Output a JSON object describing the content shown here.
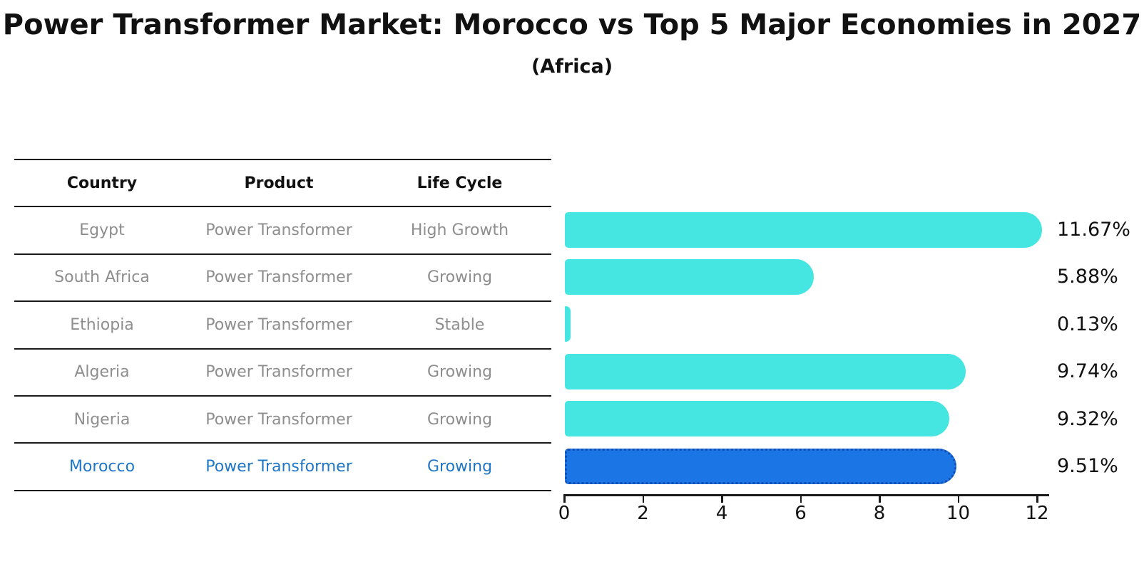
{
  "title": "Power Transformer Market: Morocco vs Top 5 Major Economies in 2027",
  "subtitle": "(Africa)",
  "table": {
    "headers": [
      "Country",
      "Product",
      "Life Cycle"
    ],
    "rows": [
      {
        "country": "Egypt",
        "product": "Power Transformer",
        "life_cycle": "High Growth",
        "highlight": false
      },
      {
        "country": "South Africa",
        "product": "Power Transformer",
        "life_cycle": "Growing",
        "highlight": false
      },
      {
        "country": "Ethiopia",
        "product": "Power Transformer",
        "life_cycle": "Stable",
        "highlight": false
      },
      {
        "country": "Algeria",
        "product": "Power Transformer",
        "life_cycle": "Growing",
        "highlight": false
      },
      {
        "country": "Nigeria",
        "product": "Power Transformer",
        "life_cycle": "Growing",
        "highlight": false
      },
      {
        "country": "Morocco",
        "product": "Power Transformer",
        "life_cycle": "Growing",
        "highlight": true
      }
    ]
  },
  "chart_data": {
    "type": "bar",
    "orientation": "horizontal",
    "title": "Power Transformer Market: Morocco vs Top 5 Major Economies in 2027 (Africa)",
    "categories": [
      "Egypt",
      "South Africa",
      "Ethiopia",
      "Algeria",
      "Nigeria",
      "Morocco"
    ],
    "values": [
      11.67,
      5.88,
      0.13,
      9.74,
      9.32,
      9.51
    ],
    "value_labels": [
      "11.67%",
      "5.88%",
      "0.13%",
      "9.74%",
      "9.32%",
      "9.51%"
    ],
    "unit": "percent",
    "xlim": [
      0,
      12.3
    ],
    "xticks": [
      0,
      2,
      4,
      6,
      8,
      10,
      12
    ],
    "grid": false,
    "legend": "none",
    "highlight_index": 5
  },
  "colors": {
    "bar": "#45E6E2",
    "highlight": "#1C75E5",
    "highlight_edge": "#1450B4",
    "highlight_text": "#1F77C8",
    "muted_text": "#8E8E8E",
    "line": "#1A1A1A"
  }
}
